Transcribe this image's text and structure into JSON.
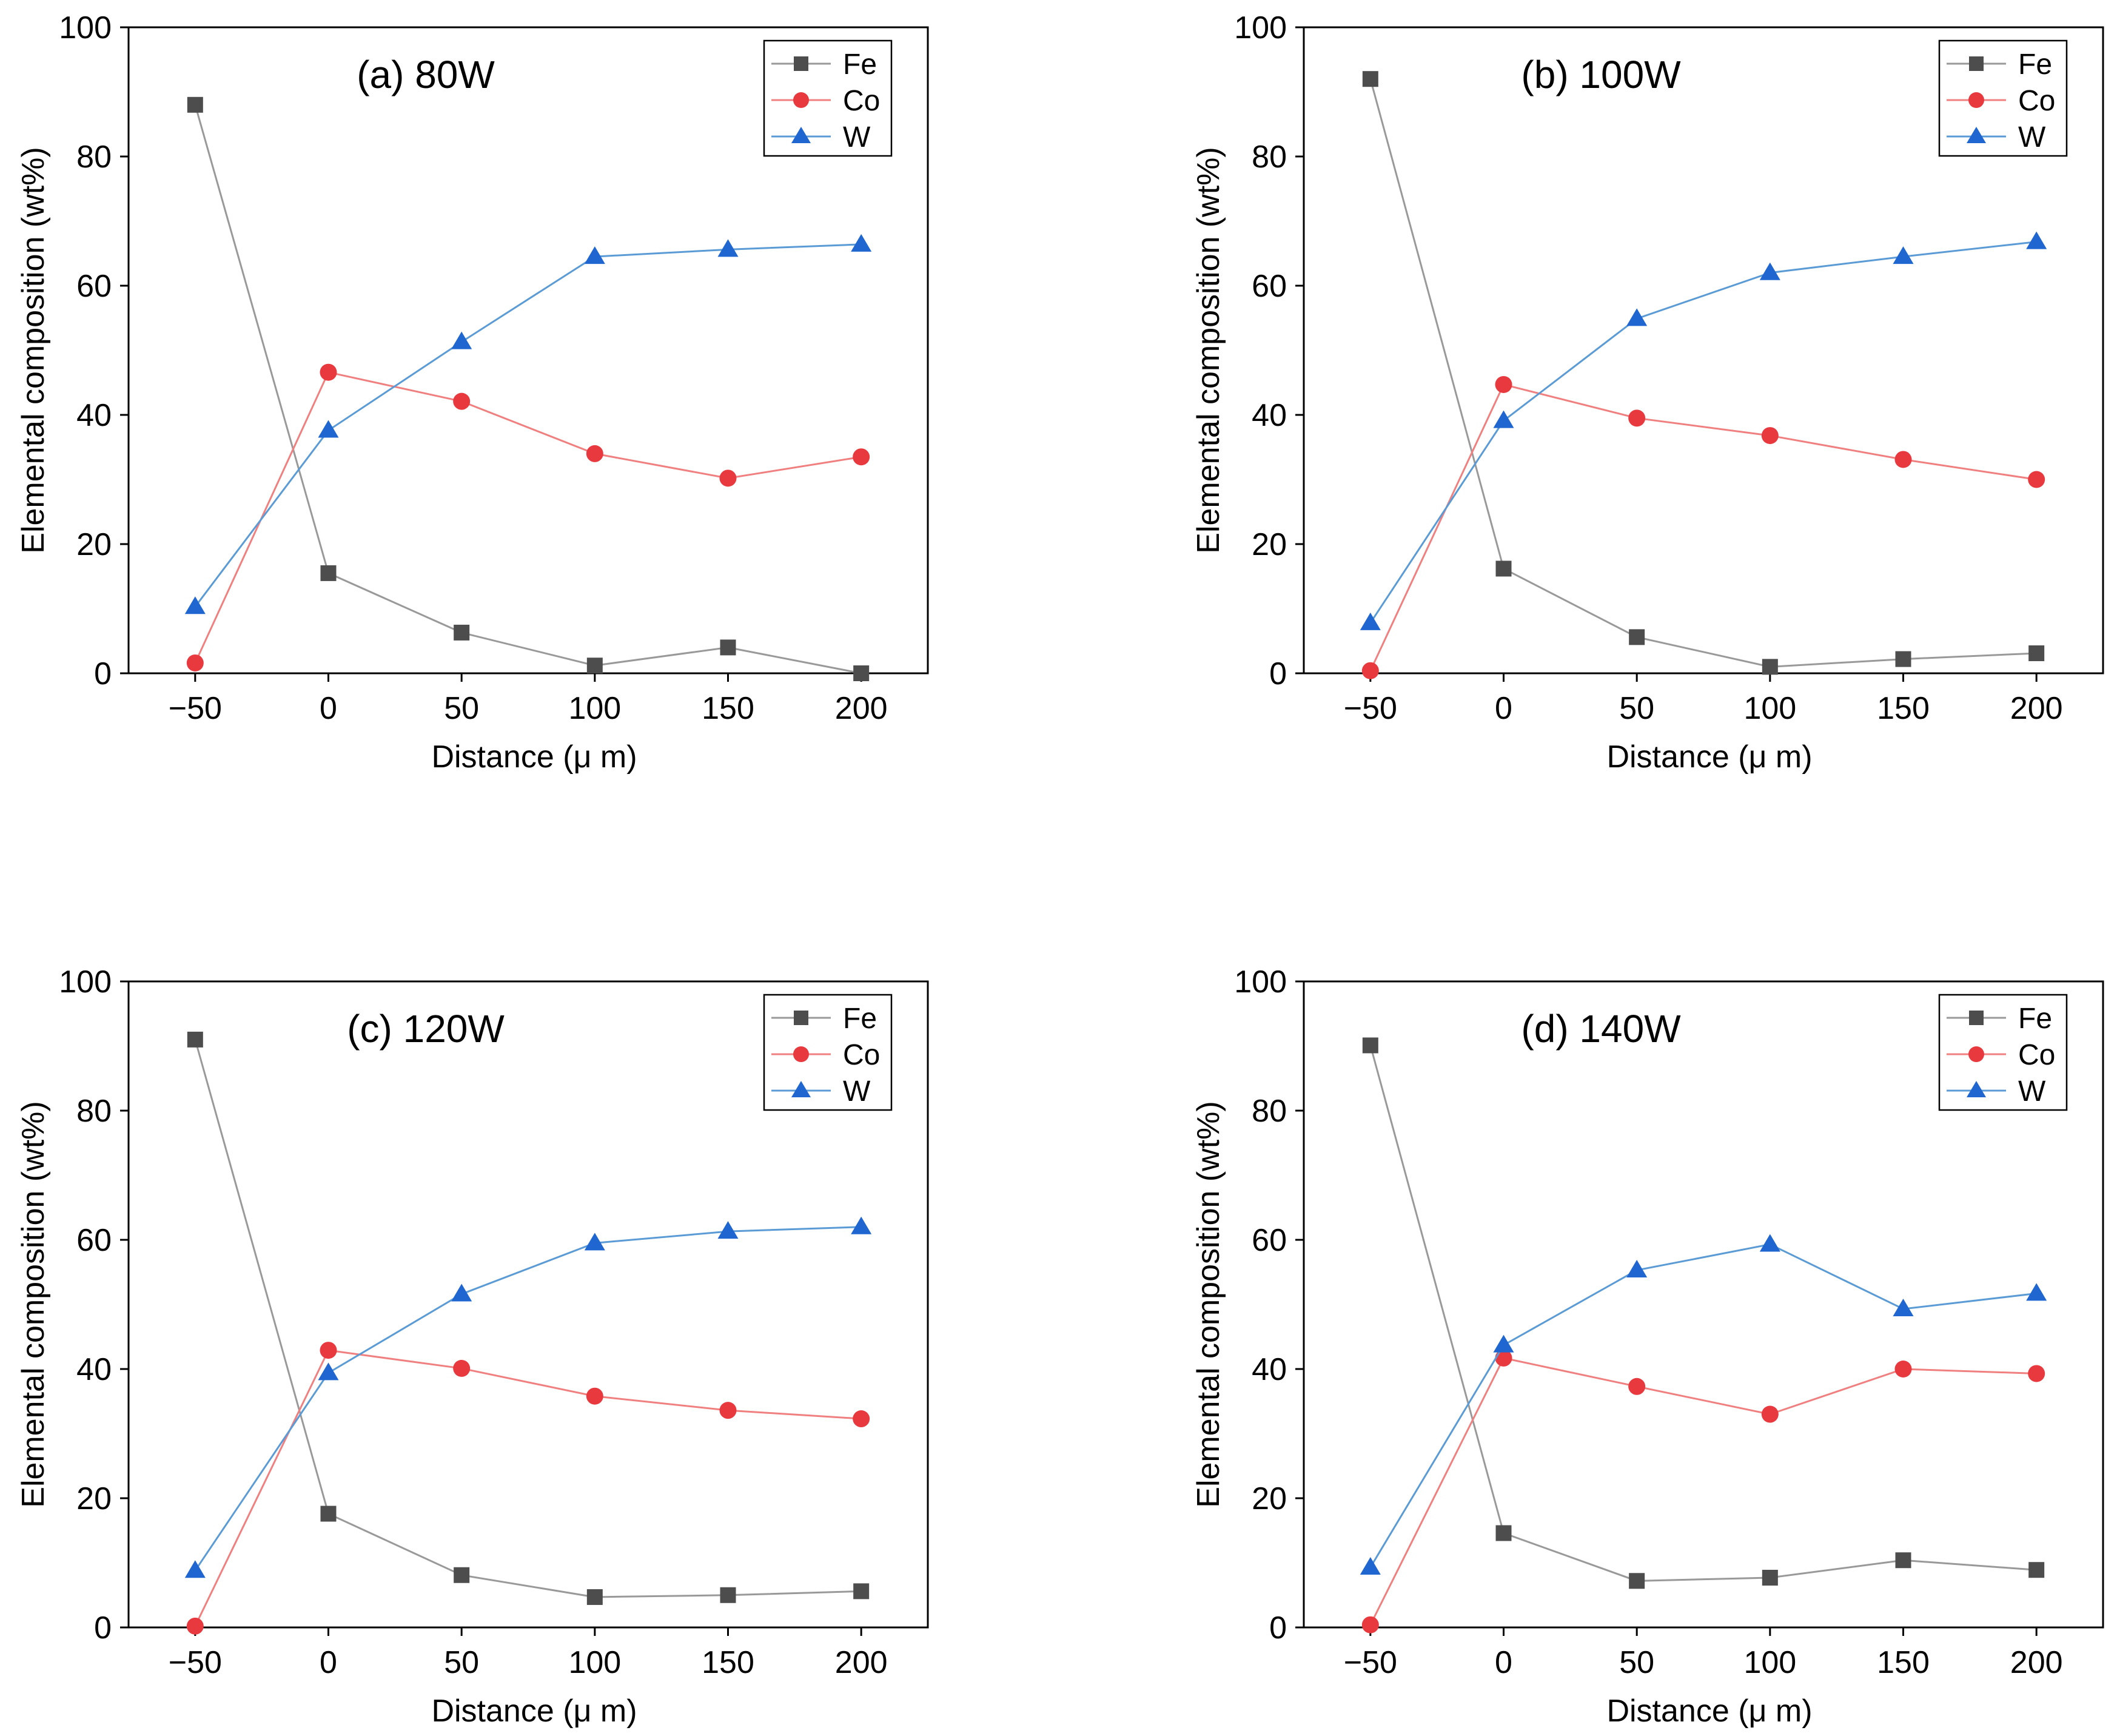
{
  "figure": {
    "description_domain": "Elemental composition profiles",
    "legend_labels": [
      "Fe",
      "Co",
      "W"
    ]
  },
  "chart_data": [
    {
      "type": "line",
      "title": "(a)  80W",
      "xlabel": "Distance (μ m)",
      "ylabel": "Elemental composition (wt%)",
      "x": [
        -50,
        0,
        50,
        100,
        150,
        200
      ],
      "xlim": [
        -75,
        225
      ],
      "ylim": [
        0,
        100
      ],
      "xticks": [
        -50,
        0,
        50,
        100,
        150,
        200
      ],
      "xtick_labels": [
        "−50",
        "0",
        "50",
        "100",
        "150",
        "200"
      ],
      "yticks": [
        0,
        20,
        40,
        60,
        80,
        100
      ],
      "legend_position": "top-right",
      "series": [
        {
          "name": "Fe",
          "marker": "square",
          "color": "#4d4d4d",
          "line_color": "#999999",
          "values": [
            88,
            15.5,
            6.3,
            1.2,
            4,
            0
          ]
        },
        {
          "name": "Co",
          "marker": "circle",
          "color": "#e8393f",
          "line_color": "#f08080",
          "values": [
            1.6,
            46.6,
            42.1,
            34,
            30.2,
            33.5
          ]
        },
        {
          "name": "W",
          "marker": "triangle",
          "color": "#1f66d1",
          "line_color": "#5b9bd5",
          "values": [
            10.3,
            37.6,
            51.3,
            64.5,
            65.6,
            66.4
          ]
        }
      ]
    },
    {
      "type": "line",
      "title": "(b)  100W",
      "xlabel": "Distance (μ m)",
      "ylabel": "Elemental composition (wt%)",
      "x": [
        -50,
        0,
        50,
        100,
        150,
        200
      ],
      "xlim": [
        -75,
        225
      ],
      "ylim": [
        0,
        100
      ],
      "xticks": [
        -50,
        0,
        50,
        100,
        150,
        200
      ],
      "xtick_labels": [
        "−50",
        "0",
        "50",
        "100",
        "150",
        "200"
      ],
      "yticks": [
        0,
        20,
        40,
        60,
        80,
        100
      ],
      "legend_position": "top-right",
      "series": [
        {
          "name": "Fe",
          "marker": "square",
          "color": "#4d4d4d",
          "line_color": "#999999",
          "values": [
            92,
            16.2,
            5.6,
            1,
            2.2,
            3.1
          ]
        },
        {
          "name": "Co",
          "marker": "circle",
          "color": "#e8393f",
          "line_color": "#f08080",
          "values": [
            0.4,
            44.7,
            39.5,
            36.8,
            33.1,
            30
          ]
        },
        {
          "name": "W",
          "marker": "triangle",
          "color": "#1f66d1",
          "line_color": "#5b9bd5",
          "values": [
            7.8,
            39.1,
            54.9,
            62,
            64.5,
            66.8
          ]
        }
      ]
    },
    {
      "type": "line",
      "title": "(c)  120W",
      "xlabel": "Distance (μ m)",
      "ylabel": "Elemental composition (wt%)",
      "x": [
        -50,
        0,
        50,
        100,
        150,
        200
      ],
      "xlim": [
        -75,
        225
      ],
      "ylim": [
        0,
        100
      ],
      "xticks": [
        -50,
        0,
        50,
        100,
        150,
        200
      ],
      "xtick_labels": [
        "−50",
        "0",
        "50",
        "100",
        "150",
        "200"
      ],
      "yticks": [
        0,
        20,
        40,
        60,
        80,
        100
      ],
      "legend_position": "top-right",
      "series": [
        {
          "name": "Fe",
          "marker": "square",
          "color": "#4d4d4d",
          "line_color": "#999999",
          "values": [
            91,
            17.6,
            8.1,
            4.7,
            5,
            5.6
          ]
        },
        {
          "name": "Co",
          "marker": "circle",
          "color": "#e8393f",
          "line_color": "#f08080",
          "values": [
            0.2,
            42.9,
            40.1,
            35.8,
            33.6,
            32.3
          ]
        },
        {
          "name": "W",
          "marker": "triangle",
          "color": "#1f66d1",
          "line_color": "#5b9bd5",
          "values": [
            8.8,
            39.4,
            51.6,
            59.5,
            61.3,
            62
          ]
        }
      ]
    },
    {
      "type": "line",
      "title": "(d)  140W",
      "xlabel": "Distance (μ m)",
      "ylabel": "Elemental composition (wt%)",
      "x": [
        -50,
        0,
        50,
        100,
        150,
        200
      ],
      "xlim": [
        -75,
        225
      ],
      "ylim": [
        0,
        100
      ],
      "xticks": [
        -50,
        0,
        50,
        100,
        150,
        200
      ],
      "xtick_labels": [
        "−50",
        "0",
        "50",
        "100",
        "150",
        "200"
      ],
      "yticks": [
        0,
        20,
        40,
        60,
        80,
        100
      ],
      "legend_position": "top-right",
      "series": [
        {
          "name": "Fe",
          "marker": "square",
          "color": "#4d4d4d",
          "line_color": "#999999",
          "values": [
            90.1,
            14.6,
            7.2,
            7.7,
            10.4,
            8.9
          ]
        },
        {
          "name": "Co",
          "marker": "circle",
          "color": "#e8393f",
          "line_color": "#f08080",
          "values": [
            0.4,
            41.7,
            37.3,
            33,
            40,
            39.3
          ]
        },
        {
          "name": "W",
          "marker": "triangle",
          "color": "#1f66d1",
          "line_color": "#5b9bd5",
          "values": [
            9.3,
            43.7,
            55.3,
            59.3,
            49.3,
            51.7
          ]
        }
      ]
    }
  ]
}
